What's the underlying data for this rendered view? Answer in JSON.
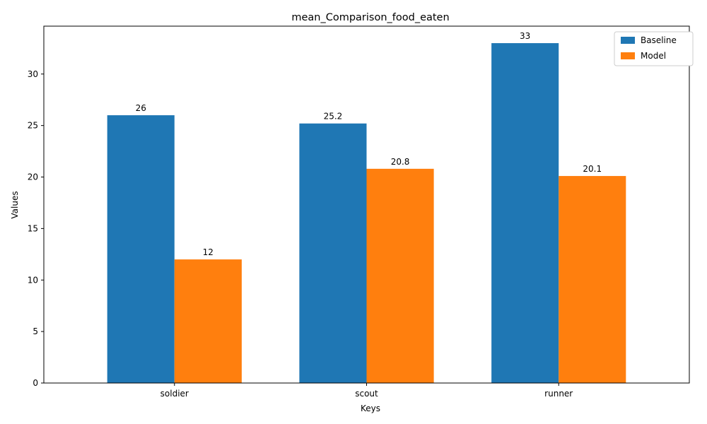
{
  "chart_data": {
    "type": "bar",
    "title": "mean_Comparison_food_eaten",
    "xlabel": "Keys",
    "ylabel": "Values",
    "categories": [
      "soldier",
      "scout",
      "runner"
    ],
    "series": [
      {
        "name": "Baseline",
        "values": [
          26,
          25.2,
          33
        ],
        "labels": [
          "26",
          "25.2",
          "33"
        ],
        "color": "#1f77b4"
      },
      {
        "name": "Model",
        "values": [
          12,
          20.8,
          20.1
        ],
        "labels": [
          "12",
          "20.8",
          "20.1"
        ],
        "color": "#ff7f0e"
      }
    ],
    "ylim": [
      0,
      34.65
    ],
    "yticks": [
      0,
      5,
      10,
      15,
      20,
      25,
      30
    ],
    "grid": false,
    "legend_position": "top-right"
  }
}
